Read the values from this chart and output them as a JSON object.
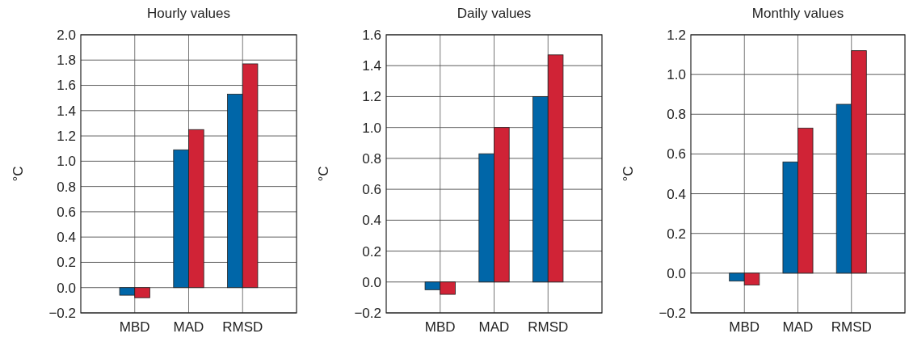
{
  "chart_data": [
    {
      "type": "bar",
      "title": "Hourly values",
      "ylabel": "°C",
      "categories": [
        "MBD",
        "MAD",
        "RMSD"
      ],
      "series": [
        {
          "color": "#0066a8",
          "values": [
            -0.06,
            1.09,
            1.53
          ]
        },
        {
          "color": "#d02336",
          "values": [
            -0.08,
            1.25,
            1.77
          ]
        }
      ],
      "ylim": [
        -0.2,
        2.0
      ],
      "yticks": [
        {
          "value": -0.2,
          "label": "−0.2"
        },
        {
          "value": 0,
          "label": "0.0"
        },
        0.2,
        0.4,
        0.6,
        0.8,
        {
          "value": 1,
          "label": "1.0"
        },
        1.2,
        1.4,
        1.6,
        1.8,
        {
          "value": 2,
          "label": "2.0"
        }
      ],
      "grid": true
    },
    {
      "type": "bar",
      "title": "Daily values",
      "ylabel": "°C",
      "categories": [
        "MBD",
        "MAD",
        "RMSD"
      ],
      "series": [
        {
          "color": "#0066a8",
          "values": [
            -0.05,
            0.83,
            1.2
          ]
        },
        {
          "color": "#d02336",
          "values": [
            -0.08,
            1.0,
            1.47
          ]
        }
      ],
      "ylim": [
        -0.2,
        1.6
      ],
      "yticks": [
        {
          "value": -0.2,
          "label": "−0.2"
        },
        {
          "value": 0,
          "label": "0.0"
        },
        0.2,
        0.4,
        0.6,
        0.8,
        {
          "value": 1,
          "label": "1.0"
        },
        1.2,
        1.4,
        1.6
      ],
      "grid": true
    },
    {
      "type": "bar",
      "title": "Monthly values",
      "ylabel": "°C",
      "categories": [
        "MBD",
        "MAD",
        "RMSD"
      ],
      "series": [
        {
          "color": "#0066a8",
          "values": [
            -0.04,
            0.56,
            0.85
          ]
        },
        {
          "color": "#d02336",
          "values": [
            -0.06,
            0.73,
            1.12
          ]
        }
      ],
      "ylim": [
        -0.2,
        1.2
      ],
      "yticks": [
        {
          "value": -0.2,
          "label": "−0.2"
        },
        {
          "value": 0,
          "label": "0.0"
        },
        0.2,
        0.4,
        0.6,
        0.8,
        {
          "value": 1,
          "label": "1.0"
        },
        1.2
      ],
      "grid": true
    }
  ]
}
